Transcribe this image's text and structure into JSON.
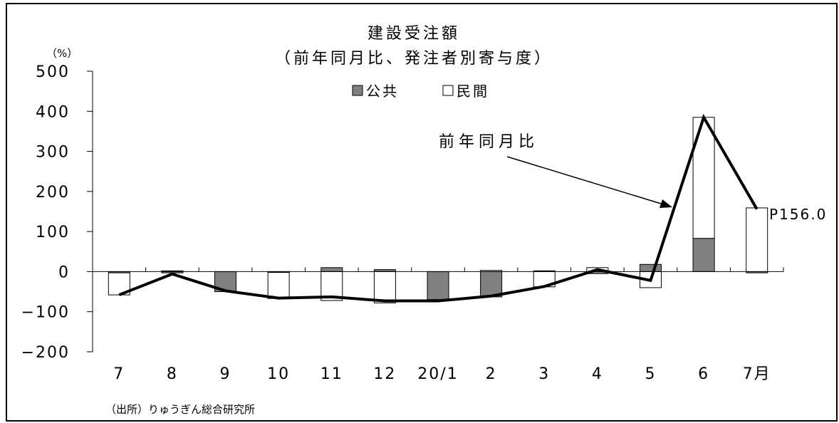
{
  "chart_data": {
    "type": "bar",
    "stacked": true,
    "title": "建設受注額",
    "subtitle": "（前年同月比、発注者別寄与度）",
    "ylabel": "（%）",
    "ylim": [
      -200,
      500
    ],
    "yticks": [
      "500",
      "400",
      "300",
      "200",
      "100",
      "0",
      "−100",
      "−200"
    ],
    "categories": [
      "7",
      "8",
      "9",
      "10",
      "11",
      "12",
      "20/1",
      "2",
      "3",
      "4",
      "5",
      "6",
      "7月"
    ],
    "series": [
      {
        "name": "公共",
        "color": "#808080",
        "values": [
          -3,
          -3,
          -50,
          -2,
          10,
          5,
          -70,
          -63,
          2,
          -5,
          18,
          83,
          -3
        ]
      },
      {
        "name": "民間",
        "color": "#ffffff",
        "values": [
          -55,
          2,
          0,
          -65,
          -72,
          -78,
          -3,
          3,
          -38,
          10,
          -40,
          302,
          159
        ]
      }
    ],
    "line": {
      "name": "前年同月比",
      "values": [
        -58,
        -6,
        -48,
        -66,
        -63,
        -73,
        -73,
        -61,
        -37,
        5,
        -22,
        385,
        156
      ]
    },
    "data_label": "P156.0",
    "source": "（出所）りゅうぎん総合研究所",
    "grid": false,
    "legend_position": "top-center"
  }
}
